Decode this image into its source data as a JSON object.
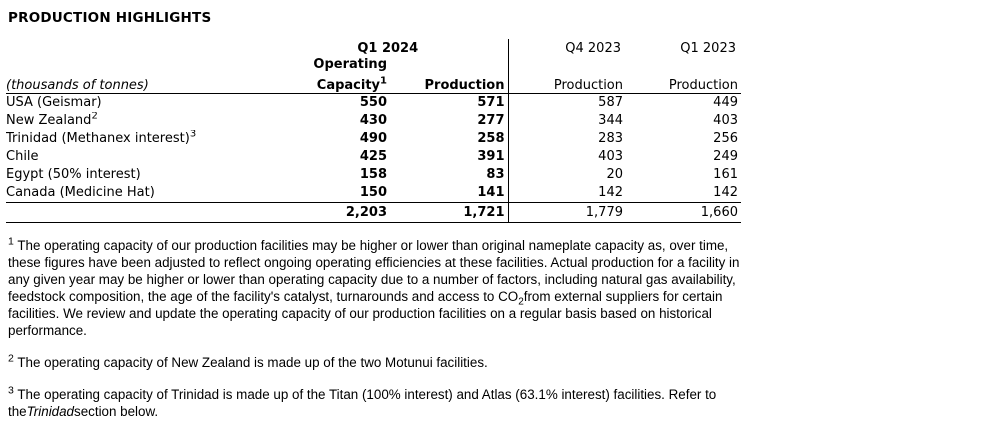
{
  "page": {
    "title": "PRODUCTION HIGHLIGHTS"
  },
  "colors": {
    "text": "#000000",
    "background": "#ffffff",
    "rule": "#000000"
  },
  "table": {
    "unit_label": "(thousands of tonnes)",
    "col_groups": {
      "q1_2024": "Q1 2024",
      "q4_2023": "Q4 2023",
      "q1_2023": "Q1 2023"
    },
    "subheaders": {
      "operating": "Operating",
      "capacity": "Capacity",
      "capacity_sup": "1",
      "production": "Production"
    },
    "rows": [
      {
        "label": "USA (Geismar)",
        "capacity": "550",
        "production": "571",
        "q4_production": "587",
        "q1_2023_production": "449"
      },
      {
        "label": "New Zealand",
        "sup": "2",
        "capacity": "430",
        "production": "277",
        "q4_production": "344",
        "q1_2023_production": "403"
      },
      {
        "label": "Trinidad (Methanex interest)",
        "sup": "3",
        "capacity": "490",
        "production": "258",
        "q4_production": "283",
        "q1_2023_production": "256"
      },
      {
        "label": "Chile",
        "capacity": "425",
        "production": "391",
        "q4_production": "403",
        "q1_2023_production": "249"
      },
      {
        "label": "Egypt (50% interest)",
        "capacity": "158",
        "production": "83",
        "q4_production": "20",
        "q1_2023_production": "161"
      },
      {
        "label": "Canada (Medicine Hat)",
        "capacity": "150",
        "production": "141",
        "q4_production": "142",
        "q1_2023_production": "142"
      }
    ],
    "totals": {
      "capacity": "2,203",
      "production": "1,721",
      "q4_production": "1,779",
      "q1_2023_production": "1,660"
    }
  },
  "footnotes": {
    "f1": {
      "marker": "1",
      "text_a": "The operating capacity of our production facilities may be higher or lower than original nameplate capacity as, over time, these figures have been adjusted to reflect ongoing operating efficiencies at these facilities. Actual production for a facility in any given year may be higher or lower than operating capacity due to a number of factors, including natural gas availability, feedstock composition, the age of the facility's catalyst, turnarounds and access to CO",
      "sub": "2",
      "text_b": "from external suppliers for certain facilities. We review and update the operating capacity of our production facilities on a regular basis based on historical performance."
    },
    "f2": {
      "marker": "2",
      "text": "The operating capacity of New Zealand is made up of the two Motunui facilities."
    },
    "f3": {
      "marker": "3",
      "text_a": "The operating capacity of Trinidad is made up of the Titan (100% interest) and Atlas (63.1% interest) facilities. Refer to the",
      "italic": "Trinidad",
      "text_b": "section below."
    }
  }
}
